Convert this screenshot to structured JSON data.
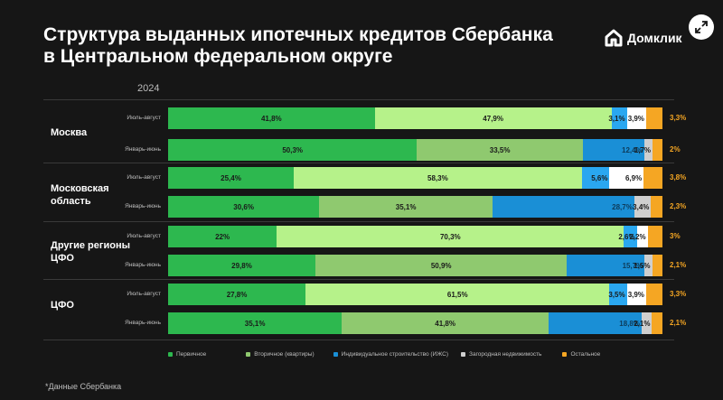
{
  "title_line1": "Структура выданных ипотечных кредитов Сбербанка",
  "title_line2": "в Центральном федеральном округе",
  "logo_text": "Домклик",
  "year_label": "2024",
  "footnote": "*Данные Сбербанка",
  "colors": {
    "primary": "#2db84f",
    "secondary": "#b6f28a",
    "secondary_dark": "#8fc96f",
    "izhs": "#1a8fd6",
    "izhs_light": "#2aa7f0",
    "country": "#ffffff",
    "country_grey": "#cfcfcf",
    "other": "#f5a623"
  },
  "chart_data": {
    "type": "bar",
    "orientation": "horizontal-stacked-100",
    "year": "2024",
    "legend": [
      {
        "key": "primary",
        "label": "Первичное"
      },
      {
        "key": "secondary",
        "label": "Вторичное (квартиры)"
      },
      {
        "key": "izhs",
        "label": "Индивидуальное строительство (ИЖС)"
      },
      {
        "key": "country",
        "label": "Загородная недвижимость"
      },
      {
        "key": "other",
        "label": "Остальное"
      }
    ],
    "groups": [
      {
        "region": "Москва",
        "rows": [
          {
            "period": "Июль-август",
            "primary": 41.8,
            "secondary": 47.9,
            "izhs": 3.1,
            "country": 3.9,
            "other": 3.3,
            "labels": {
              "primary": "41,8%",
              "secondary": "47,9%",
              "izhs": "3,1%",
              "country": "3,9%",
              "other": "3,3%"
            }
          },
          {
            "period": "Январь-июнь",
            "primary": 50.3,
            "secondary": 33.5,
            "izhs": 12.4,
            "country": 1.7,
            "other": 2,
            "labels": {
              "primary": "50,3%",
              "secondary": "33,5%",
              "izhs": "12,4%",
              "country": "1,7%",
              "other": "2%"
            }
          }
        ]
      },
      {
        "region": "Московская область",
        "rows": [
          {
            "period": "Июль-август",
            "primary": 25.4,
            "secondary": 58.3,
            "izhs": 5.6,
            "country": 6.9,
            "other": 3.8,
            "labels": {
              "primary": "25,4%",
              "secondary": "58,3%",
              "izhs": "5,6%",
              "country": "6,9%",
              "other": "3,8%"
            }
          },
          {
            "period": "Январь-июнь",
            "primary": 30.6,
            "secondary": 35.1,
            "izhs": 28.7,
            "country": 3.4,
            "other": 2.3,
            "labels": {
              "primary": "30,6%",
              "secondary": "35,1%",
              "izhs": "28,7%",
              "country": "3,4%",
              "other": "2,3%"
            }
          }
        ]
      },
      {
        "region": "Другие регионы ЦФО",
        "rows": [
          {
            "period": "Июль-август",
            "primary": 22,
            "secondary": 70.3,
            "izhs": 2.6,
            "country": 2.2,
            "other": 3,
            "labels": {
              "primary": "22%",
              "secondary": "70,3%",
              "izhs": "2,6%",
              "country": "2,2%",
              "other": "3%"
            }
          },
          {
            "period": "Январь-июнь",
            "primary": 29.8,
            "secondary": 50.9,
            "izhs": 15.7,
            "country": 1.5,
            "other": 2.1,
            "labels": {
              "primary": "29,8%",
              "secondary": "50,9%",
              "izhs": "15,7%",
              "country": "1,5%",
              "other": "2,1%"
            }
          }
        ]
      },
      {
        "region": "ЦФО",
        "rows": [
          {
            "period": "Июль-август",
            "primary": 27.8,
            "secondary": 61.5,
            "izhs": 3.5,
            "country": 3.9,
            "other": 3.3,
            "labels": {
              "primary": "27,8%",
              "secondary": "61,5%",
              "izhs": "3,5%",
              "country": "3,9%",
              "other": "3,3%"
            }
          },
          {
            "period": "Январь-июнь",
            "primary": 35.1,
            "secondary": 41.8,
            "izhs": 18.8,
            "country": 2.1,
            "other": 2.1,
            "labels": {
              "primary": "35,1%",
              "secondary": "41,8%",
              "izhs": "18,8%",
              "country": "2,1%",
              "other": "2,1%"
            }
          }
        ]
      }
    ]
  }
}
